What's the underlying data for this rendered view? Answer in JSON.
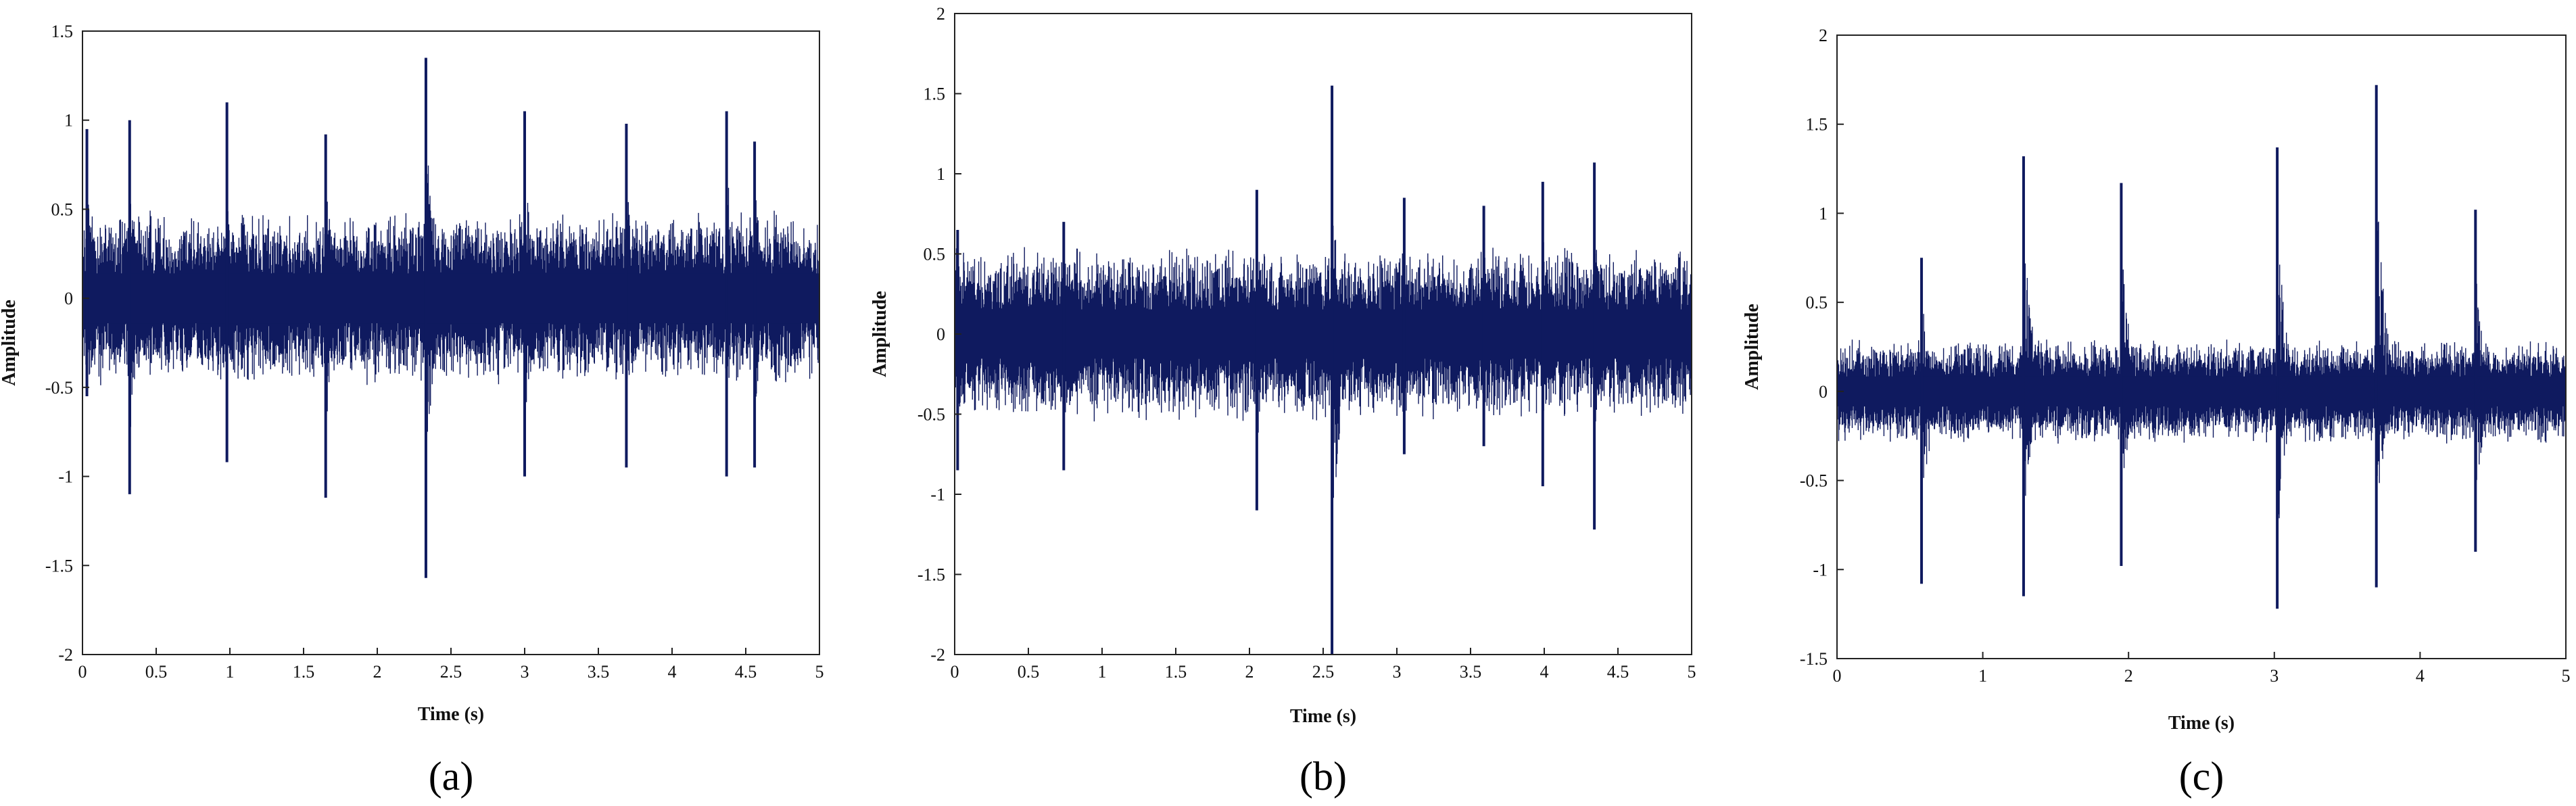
{
  "colors": {
    "signal": "#0f1a5f",
    "axes": "#222222",
    "background": "#ffffff"
  },
  "chart_data": [
    {
      "type": "line",
      "caption": "(a)",
      "xlabel": "Time (s)",
      "ylabel": "Amplitude",
      "xlim": [
        0,
        5
      ],
      "ylim": [
        -2,
        1.5
      ],
      "xticks": [
        "0",
        "0.5",
        "1",
        "1.5",
        "2",
        "2.5",
        "3",
        "3.5",
        "4",
        "4.5",
        "5"
      ],
      "yticks": [
        "-2",
        "-1.5",
        "-1",
        "-0.5",
        "0",
        "0.5",
        "1",
        "1.5"
      ],
      "grid": false,
      "series": [
        {
          "noise_amplitude": 0.5,
          "spikes": [
            {
              "t": 0.03,
              "max": 0.95,
              "min": -0.55
            },
            {
              "t": 0.32,
              "max": 1.0,
              "min": -1.1
            },
            {
              "t": 0.98,
              "max": 1.1,
              "min": -0.92
            },
            {
              "t": 1.65,
              "max": 0.92,
              "min": -1.12
            },
            {
              "t": 2.33,
              "max": 1.35,
              "min": -1.57
            },
            {
              "t": 3.0,
              "max": 1.05,
              "min": -1.0
            },
            {
              "t": 3.69,
              "max": 0.98,
              "min": -0.95
            },
            {
              "t": 4.37,
              "max": 1.05,
              "min": -1.0
            },
            {
              "t": 4.56,
              "max": 0.88,
              "min": -0.95
            }
          ]
        }
      ]
    },
    {
      "type": "line",
      "caption": "(b)",
      "xlabel": "Time (s)",
      "ylabel": "Amplitude",
      "xlim": [
        0,
        5
      ],
      "ylim": [
        -2,
        2
      ],
      "xticks": [
        "0",
        "0.5",
        "1",
        "1.5",
        "2",
        "2.5",
        "3",
        "3.5",
        "4",
        "4.5",
        "5"
      ],
      "yticks": [
        "-2",
        "-1.5",
        "-1",
        "-0.5",
        "0",
        "0.5",
        "1",
        "1.5",
        "2"
      ],
      "grid": false,
      "series": [
        {
          "noise_amplitude": 0.55,
          "spikes": [
            {
              "t": 0.02,
              "max": 0.65,
              "min": -0.85
            },
            {
              "t": 0.74,
              "max": 0.7,
              "min": -0.85
            },
            {
              "t": 2.05,
              "max": 0.9,
              "min": -1.1
            },
            {
              "t": 2.56,
              "max": 1.55,
              "min": -2.0
            },
            {
              "t": 3.05,
              "max": 0.85,
              "min": -0.75
            },
            {
              "t": 3.59,
              "max": 0.8,
              "min": -0.7
            },
            {
              "t": 3.99,
              "max": 0.95,
              "min": -0.95
            },
            {
              "t": 4.34,
              "max": 1.07,
              "min": -1.22
            }
          ]
        }
      ]
    },
    {
      "type": "line",
      "caption": "(c)",
      "xlabel": "Time (s)",
      "ylabel": "Amplitude",
      "xlim": [
        0,
        5
      ],
      "ylim": [
        -1.5,
        2
      ],
      "xticks": [
        "0",
        "1",
        "2",
        "3",
        "4",
        "5"
      ],
      "yticks": [
        "-1.5",
        "-1",
        "-0.5",
        "0",
        "0.5",
        "1",
        "1.5",
        "2"
      ],
      "grid": false,
      "series": [
        {
          "noise_amplitude": 0.3,
          "spikes": [
            {
              "t": 0.58,
              "max": 0.75,
              "min": -1.08
            },
            {
              "t": 1.28,
              "max": 1.32,
              "min": -1.15
            },
            {
              "t": 1.95,
              "max": 1.17,
              "min": -0.98
            },
            {
              "t": 3.02,
              "max": 1.37,
              "min": -1.22
            },
            {
              "t": 3.7,
              "max": 1.72,
              "min": -1.1
            },
            {
              "t": 4.38,
              "max": 1.02,
              "min": -0.9
            }
          ]
        }
      ]
    }
  ]
}
